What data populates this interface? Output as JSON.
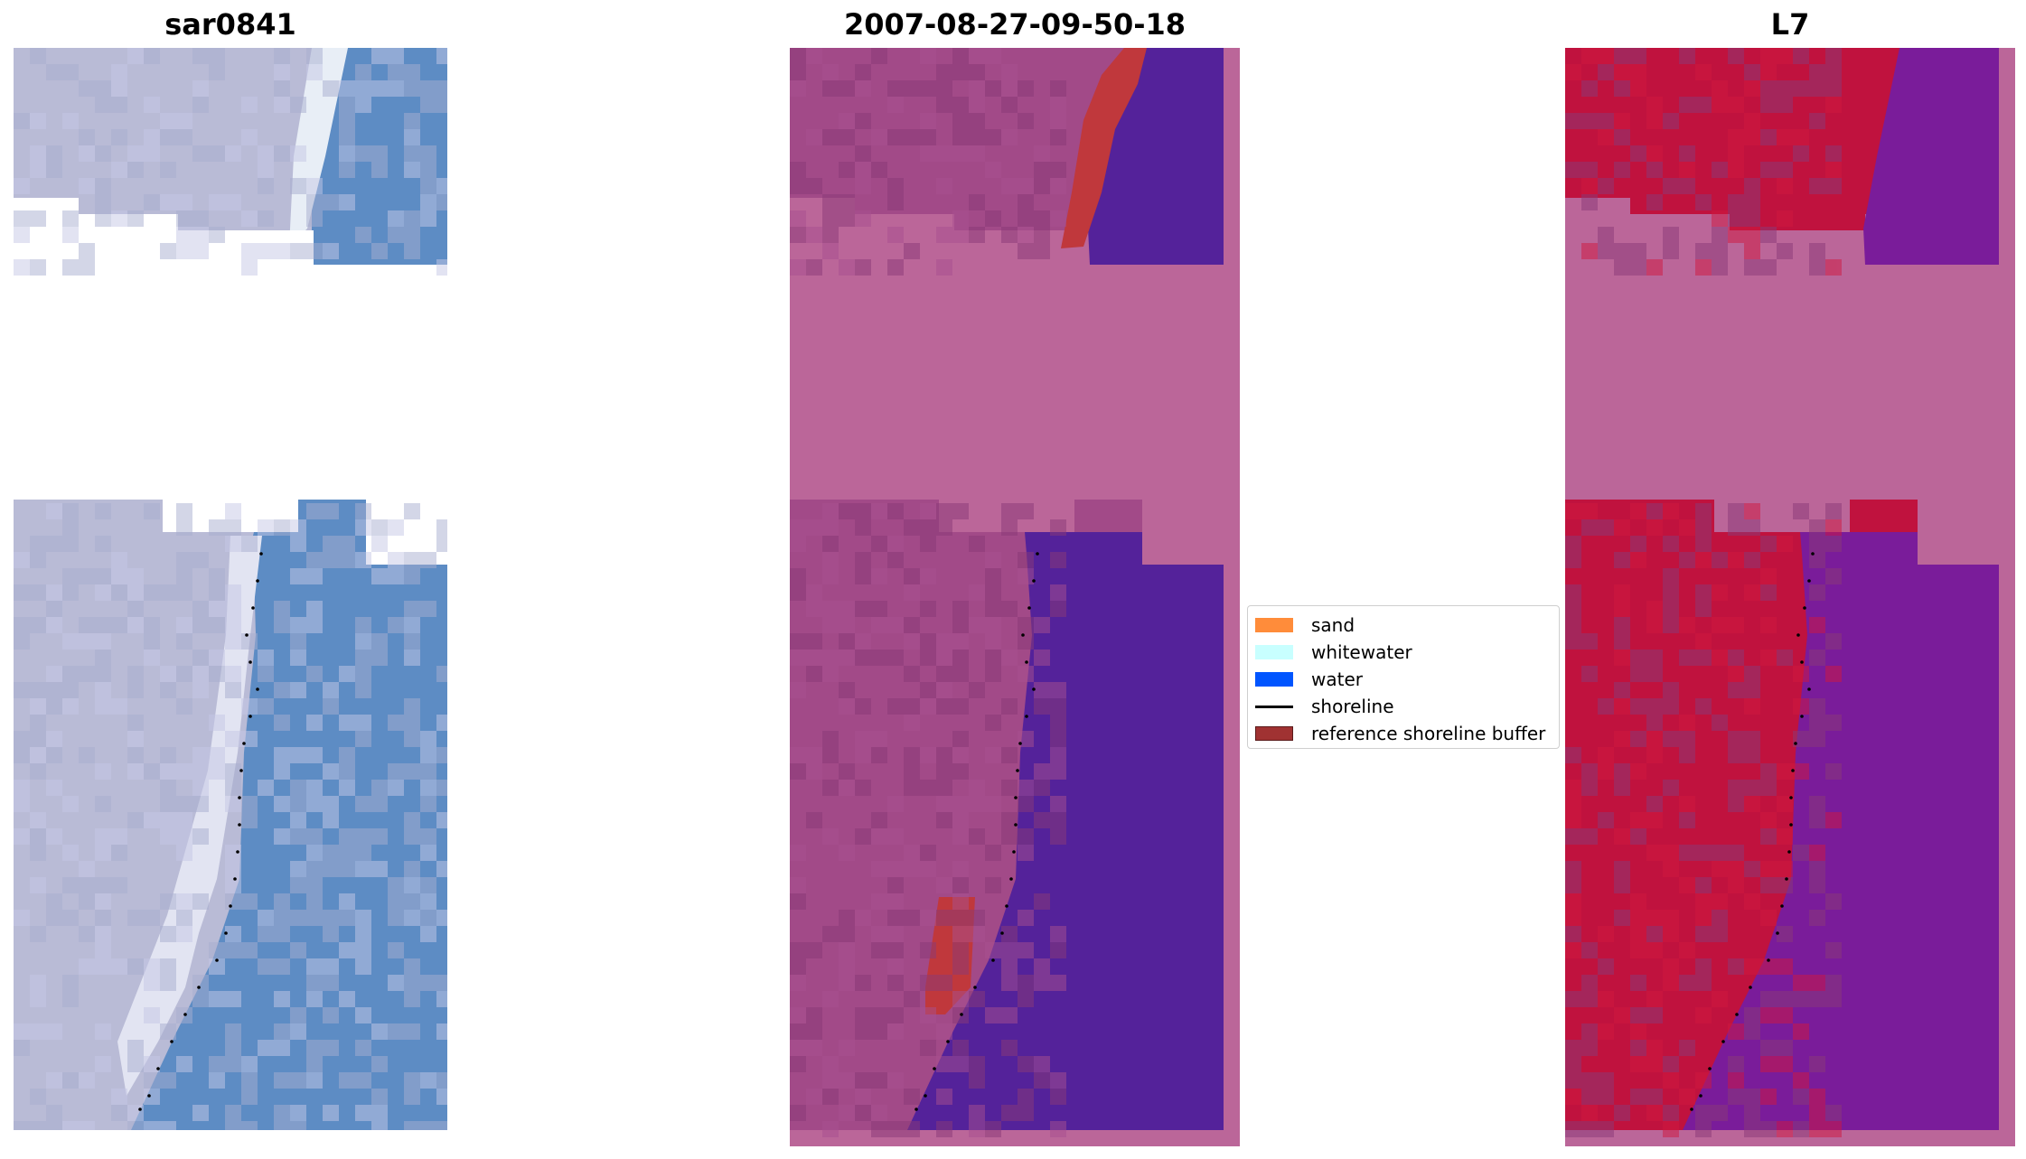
{
  "panels": [
    {
      "title": "sar0841",
      "kind": "rgb"
    },
    {
      "title": "2007-08-27-09-50-18",
      "kind": "classified"
    },
    {
      "title": "L7",
      "kind": "mndwi"
    }
  ],
  "legend": {
    "items": [
      {
        "label": "sand",
        "type": "patch",
        "color": "#ff8c3a"
      },
      {
        "label": "whitewater",
        "type": "patch",
        "color": "#c8ffff"
      },
      {
        "label": "water",
        "type": "patch",
        "color": "#0055ff"
      },
      {
        "label": "shoreline",
        "type": "line",
        "color": "#000000"
      },
      {
        "label": "reference shoreline buffer",
        "type": "patch",
        "color": "#a03232"
      }
    ]
  },
  "colors": {
    "nodata_mask": "#bb6699",
    "land_rgb": "#b9bbd6",
    "water_rgb": "#5d8cc4",
    "land_classified": "#a24a88",
    "water_classified": "#54229a",
    "land_index": "#c0123e",
    "water_index": "#7a1c9a"
  }
}
